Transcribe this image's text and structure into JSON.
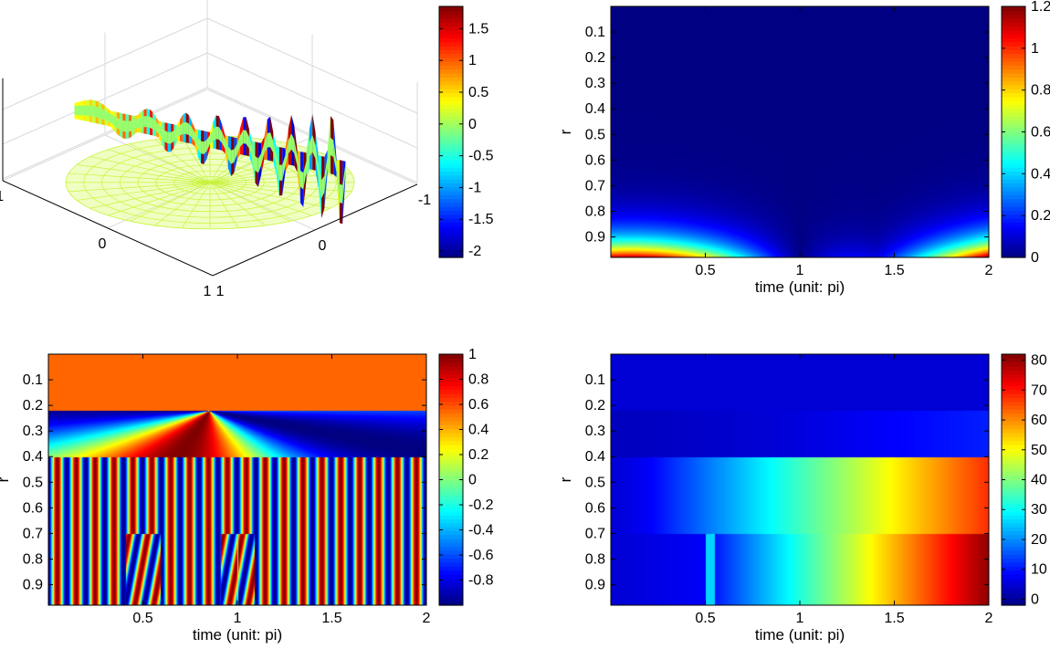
{
  "figure": {
    "panels": [
      {
        "id": "surface3d",
        "colorbar": {
          "ticks": [
            -2,
            -1.5,
            -1,
            -0.5,
            0,
            0.5,
            1,
            1.5
          ],
          "min": -2.1,
          "max": 1.85
        }
      },
      {
        "id": "magnitude",
        "colorbar": {
          "ticks": [
            0,
            0.2,
            0.4,
            0.6,
            0.8,
            1,
            1.2
          ],
          "min": 0,
          "max": 1.2
        }
      },
      {
        "id": "phase",
        "colorbar": {
          "ticks": [
            -0.8,
            -0.6,
            -0.4,
            -0.2,
            0,
            0.2,
            0.4,
            0.6,
            0.8,
            1
          ],
          "min": -1,
          "max": 1
        }
      },
      {
        "id": "accumulated",
        "colorbar": {
          "ticks": [
            0,
            10,
            20,
            30,
            40,
            50,
            60,
            70,
            80
          ],
          "min": -2,
          "max": 82
        }
      }
    ]
  },
  "chart_data": [
    {
      "type": "surface",
      "x_ticks": [
        "-1",
        "0",
        "1"
      ],
      "y_ticks": [
        "-1",
        "0",
        "1"
      ],
      "z_ticks": [
        "-1",
        "0",
        "1"
      ],
      "colormap": "jet",
      "zlim": [
        -2.1,
        1.85
      ]
    },
    {
      "type": "heatmap",
      "xlabel": "time (unit: pi)",
      "ylabel": "r",
      "x_ticks": [
        0.5,
        1,
        1.5,
        2
      ],
      "y_ticks": [
        0.1,
        0.2,
        0.3,
        0.4,
        0.5,
        0.6,
        0.7,
        0.8,
        0.9
      ],
      "xlim": [
        0,
        2
      ],
      "ylim": [
        0,
        0.98
      ],
      "colormap": "jet",
      "clim": [
        0,
        1.2
      ]
    },
    {
      "type": "heatmap",
      "xlabel": "time (unit: pi)",
      "ylabel": "r",
      "x_ticks": [
        0.5,
        1,
        1.5,
        2
      ],
      "y_ticks": [
        0.1,
        0.2,
        0.3,
        0.4,
        0.5,
        0.6,
        0.7,
        0.8,
        0.9
      ],
      "xlim": [
        0,
        2
      ],
      "ylim": [
        0,
        0.98
      ],
      "colormap": "jet",
      "clim": [
        -1,
        1
      ],
      "regions": [
        {
          "r_range": [
            0,
            0.22
          ],
          "value": 0.55
        },
        {
          "r_range": [
            0.22,
            0.4
          ],
          "pattern": "phase fan centred at t=0.85"
        },
        {
          "r_range": [
            0.4,
            0.98
          ],
          "pattern": "oscillating stripes, 10 periods",
          "cusps_at_r": 0.7,
          "cusps_at_t": [
            0.5,
            1.0
          ]
        }
      ]
    },
    {
      "type": "heatmap",
      "xlabel": "time (unit: pi)",
      "ylabel": "r",
      "x_ticks": [
        0.5,
        1,
        1.5,
        2
      ],
      "y_ticks": [
        0.1,
        0.2,
        0.3,
        0.4,
        0.5,
        0.6,
        0.7,
        0.8,
        0.9
      ],
      "xlim": [
        0,
        2
      ],
      "ylim": [
        0,
        0.98
      ],
      "colormap": "jet",
      "clim": [
        -2,
        82
      ],
      "regions": [
        {
          "r_range": [
            0,
            0.22
          ],
          "value": 5
        },
        {
          "r_range": [
            0.22,
            0.4
          ],
          "value_start": 5,
          "value_end": 11,
          "ramp_start_t": 0.85
        },
        {
          "r_range": [
            0.4,
            0.7
          ],
          "value_start": 8,
          "value_end": 68,
          "ramp_start_t": 0.2
        },
        {
          "r_range": [
            0.7,
            0.98
          ],
          "value_start": 8,
          "value_end": 81,
          "ramp_start_t": 0.5
        }
      ]
    }
  ]
}
